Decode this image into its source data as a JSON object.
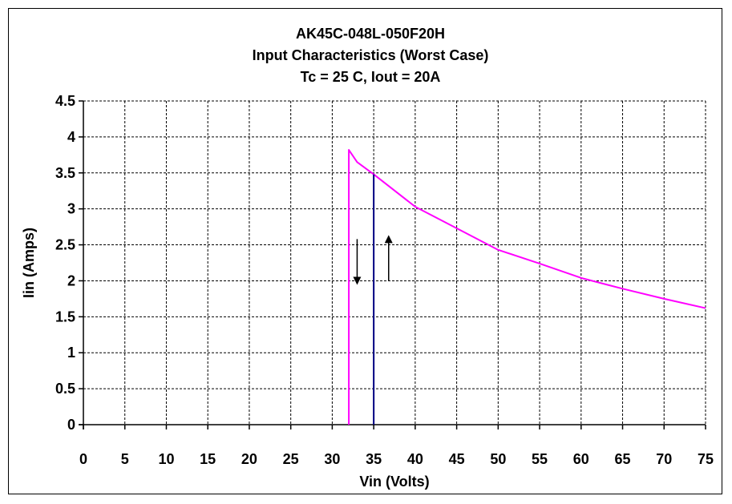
{
  "chart_data": {
    "type": "line",
    "title_lines": [
      "AK45C-048L-050F20H",
      "Input Characteristics (Worst Case)",
      "Tc = 25 C, Iout = 20A"
    ],
    "xlabel": "Vin (Volts)",
    "ylabel": "Iin (Amps)",
    "xlim": [
      0,
      75
    ],
    "ylim": [
      0,
      4.5
    ],
    "x_ticks": [
      0,
      5,
      10,
      15,
      20,
      25,
      30,
      35,
      40,
      45,
      50,
      55,
      60,
      65,
      70,
      75
    ],
    "y_ticks": [
      0,
      0.5,
      1,
      1.5,
      2,
      2.5,
      3,
      3.5,
      4,
      4.5
    ],
    "y_tick_labels": [
      "0",
      "0.5",
      "1",
      "1.5",
      "2",
      "2.5",
      "3",
      "3.5",
      "4",
      "4.5"
    ],
    "grid": "dashed",
    "series": [
      {
        "color": "#ff00ff",
        "points": [
          [
            32,
            0
          ],
          [
            32,
            3.82
          ],
          [
            33,
            3.65
          ],
          [
            35,
            3.48
          ],
          [
            40,
            3.03
          ],
          [
            45,
            2.73
          ],
          [
            50,
            2.43
          ],
          [
            55,
            2.24
          ],
          [
            60,
            2.04
          ],
          [
            65,
            1.89
          ],
          [
            70,
            1.75
          ],
          [
            75,
            1.62
          ]
        ]
      },
      {
        "color": "#000080",
        "points": [
          [
            35,
            0
          ],
          [
            35,
            3.48
          ]
        ]
      }
    ],
    "annotations": [
      {
        "type": "arrow",
        "direction": "down",
        "x": 33.0,
        "y_from": 2.58,
        "y_to": 2.0
      },
      {
        "type": "arrow",
        "direction": "up",
        "x": 36.8,
        "y_from": 2.0,
        "y_to": 2.58
      }
    ]
  }
}
